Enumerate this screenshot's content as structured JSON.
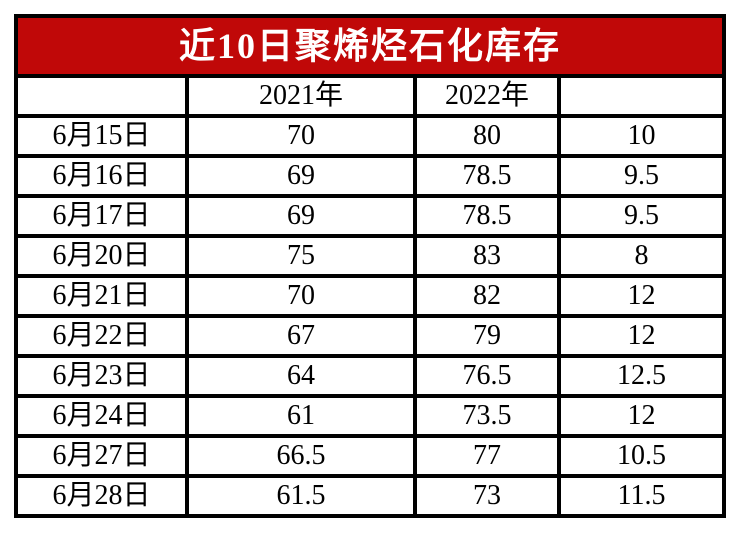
{
  "title": "近10日聚烯烃石化库存",
  "colors": {
    "title_bg": "#C00808",
    "title_text": "#FFFFFF",
    "grid_border": "#000000",
    "cell_bg": "#FFFFFF",
    "cell_text": "#000000"
  },
  "chart_data": {
    "type": "table",
    "title": "近10日聚烯烃石化库存",
    "columns": [
      "",
      "2021年",
      "2022年",
      ""
    ],
    "rows": [
      [
        "6月15日",
        70,
        80,
        10
      ],
      [
        "6月16日",
        69,
        78.5,
        9.5
      ],
      [
        "6月17日",
        69,
        78.5,
        9.5
      ],
      [
        "6月20日",
        75,
        83,
        8
      ],
      [
        "6月21日",
        70,
        82,
        12
      ],
      [
        "6月22日",
        67,
        79,
        12
      ],
      [
        "6月23日",
        64,
        76.5,
        12.5
      ],
      [
        "6月24日",
        61,
        73.5,
        12
      ],
      [
        "6月27日",
        66.5,
        77,
        10.5
      ],
      [
        "6月28日",
        61.5,
        73,
        11.5
      ]
    ]
  }
}
